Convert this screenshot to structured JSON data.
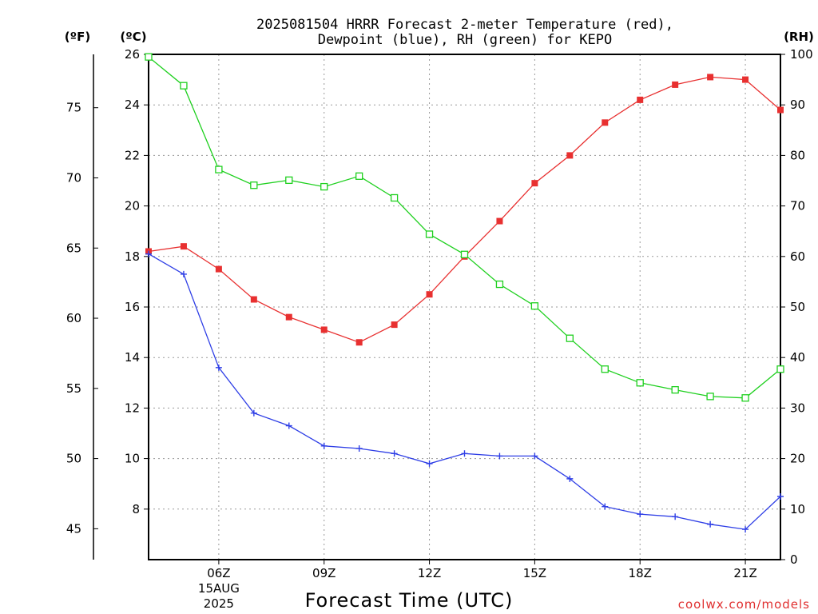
{
  "chart_data": {
    "type": "line",
    "title_lines": [
      "2025081504 HRRR Forecast 2-meter Temperature (red),",
      "Dewpoint (blue), RH (green) for KEPO"
    ],
    "unit_labels": {
      "fahrenheit": "(ºF)",
      "celsius": "(ºC)",
      "rh": "(RH)"
    },
    "xlabel": "Forecast Time (UTC)",
    "credit": "coolwx.com/models",
    "x_hours": [
      4,
      5,
      6,
      7,
      8,
      9,
      10,
      11,
      12,
      13,
      14,
      15,
      16,
      17,
      18,
      19,
      20,
      21,
      22
    ],
    "xlim": [
      4,
      22
    ],
    "x_ticks": [
      {
        "hour": 6,
        "label": "06Z",
        "sub1": "15AUG",
        "sub2": "2025"
      },
      {
        "hour": 9,
        "label": "09Z"
      },
      {
        "hour": 12,
        "label": "12Z"
      },
      {
        "hour": 15,
        "label": "15Z"
      },
      {
        "hour": 18,
        "label": "18Z"
      },
      {
        "hour": 21,
        "label": "21Z"
      }
    ],
    "celsius_axis": {
      "lim": [
        6.0,
        26.0
      ],
      "ticks": [
        8,
        10,
        12,
        14,
        16,
        18,
        20,
        22,
        24,
        26
      ]
    },
    "fahrenheit_axis": {
      "ticks": [
        45,
        50,
        55,
        60,
        65,
        70,
        75
      ]
    },
    "rh_axis": {
      "lim": [
        0,
        100
      ],
      "ticks": [
        0,
        10,
        20,
        30,
        40,
        50,
        60,
        70,
        80,
        90,
        100
      ]
    },
    "grid": true,
    "colors": {
      "temperature": "#e83030",
      "dewpoint": "#2f3fe6",
      "rh": "#1fd01f"
    },
    "series": [
      {
        "name": "Temperature (red)",
        "axis": "celsius",
        "marker": "filled-square",
        "values": [
          18.2,
          18.4,
          17.5,
          16.3,
          15.6,
          15.1,
          14.6,
          15.3,
          16.5,
          18.0,
          19.4,
          20.9,
          22.0,
          23.3,
          24.2,
          24.8,
          25.1,
          25.0,
          23.8
        ]
      },
      {
        "name": "Dewpoint (blue)",
        "axis": "celsius",
        "marker": "plus",
        "values": [
          18.1,
          17.3,
          13.6,
          11.8,
          11.3,
          10.5,
          10.4,
          10.2,
          9.8,
          10.2,
          10.1,
          10.1,
          9.2,
          8.1,
          7.8,
          7.7,
          7.4,
          7.2,
          8.5
        ]
      },
      {
        "name": "RH (green)",
        "axis": "rh",
        "marker": "open-square",
        "values": [
          99.5,
          93.8,
          77.2,
          74.1,
          75.1,
          73.8,
          75.9,
          71.6,
          64.4,
          60.4,
          54.5,
          50.2,
          43.8,
          37.7,
          35.0,
          33.6,
          32.3,
          32.0,
          37.7
        ]
      }
    ]
  }
}
